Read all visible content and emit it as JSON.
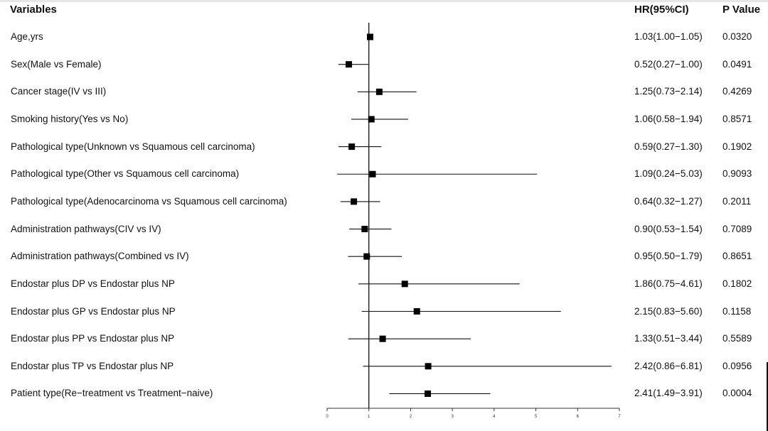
{
  "headers": {
    "variables": "Variables",
    "hr": "HR(95%CI)",
    "p": "P Value"
  },
  "chart_data": {
    "type": "forest",
    "title": "",
    "xlabel": "",
    "ylabel": "",
    "xlim": [
      0,
      7
    ],
    "x_ticks": [
      0,
      1,
      2,
      3,
      4,
      5,
      6,
      7
    ],
    "reference_line": 1,
    "grid": false,
    "rows": [
      {
        "label": "Age,yrs",
        "hr": 1.03,
        "lower": 1.0,
        "upper": 1.05,
        "hr_text": "1.03(1.00−1.05)",
        "p": "0.0320"
      },
      {
        "label": "Sex(Male vs Female)",
        "hr": 0.52,
        "lower": 0.27,
        "upper": 1.0,
        "hr_text": "0.52(0.27−1.00)",
        "p": "0.0491"
      },
      {
        "label": "Cancer stage(IV vs III)",
        "hr": 1.25,
        "lower": 0.73,
        "upper": 2.14,
        "hr_text": "1.25(0.73−2.14)",
        "p": "0.4269"
      },
      {
        "label": "Smoking history(Yes vs No)",
        "hr": 1.06,
        "lower": 0.58,
        "upper": 1.94,
        "hr_text": "1.06(0.58−1.94)",
        "p": "0.8571"
      },
      {
        "label": "Pathological type(Unknown vs Squamous cell carcinoma)",
        "hr": 0.59,
        "lower": 0.27,
        "upper": 1.3,
        "hr_text": "0.59(0.27−1.30)",
        "p": "0.1902"
      },
      {
        "label": "Pathological type(Other vs Squamous cell carcinoma)",
        "hr": 1.09,
        "lower": 0.24,
        "upper": 5.03,
        "hr_text": "1.09(0.24−5.03)",
        "p": "0.9093"
      },
      {
        "label": "Pathological type(Adenocarcinoma vs Squamous cell carcinoma)",
        "hr": 0.64,
        "lower": 0.32,
        "upper": 1.27,
        "hr_text": "0.64(0.32−1.27)",
        "p": "0.2011"
      },
      {
        "label": "Administration pathways(CIV vs IV)",
        "hr": 0.9,
        "lower": 0.53,
        "upper": 1.54,
        "hr_text": "0.90(0.53−1.54)",
        "p": "0.7089"
      },
      {
        "label": "Administration pathways(Combined vs IV)",
        "hr": 0.95,
        "lower": 0.5,
        "upper": 1.79,
        "hr_text": "0.95(0.50−1.79)",
        "p": "0.8651"
      },
      {
        "label": "Endostar plus DP vs Endostar plus NP",
        "hr": 1.86,
        "lower": 0.75,
        "upper": 4.61,
        "hr_text": "1.86(0.75−4.61)",
        "p": "0.1802"
      },
      {
        "label": "Endostar plus GP vs Endostar plus NP",
        "hr": 2.15,
        "lower": 0.83,
        "upper": 5.6,
        "hr_text": "2.15(0.83−5.60)",
        "p": "0.1158"
      },
      {
        "label": "Endostar plus PP vs Endostar plus NP",
        "hr": 1.33,
        "lower": 0.51,
        "upper": 3.44,
        "hr_text": "1.33(0.51−3.44)",
        "p": "0.5589"
      },
      {
        "label": "Endostar plus TP vs Endostar plus NP",
        "hr": 2.42,
        "lower": 0.86,
        "upper": 6.81,
        "hr_text": "2.42(0.86−6.81)",
        "p": "0.0956"
      },
      {
        "label": "Patient type(Re−treatment vs Treatment−naive)",
        "hr": 2.41,
        "lower": 1.49,
        "upper": 3.91,
        "hr_text": "2.41(1.49−3.91)",
        "p": "0.0004"
      }
    ]
  }
}
